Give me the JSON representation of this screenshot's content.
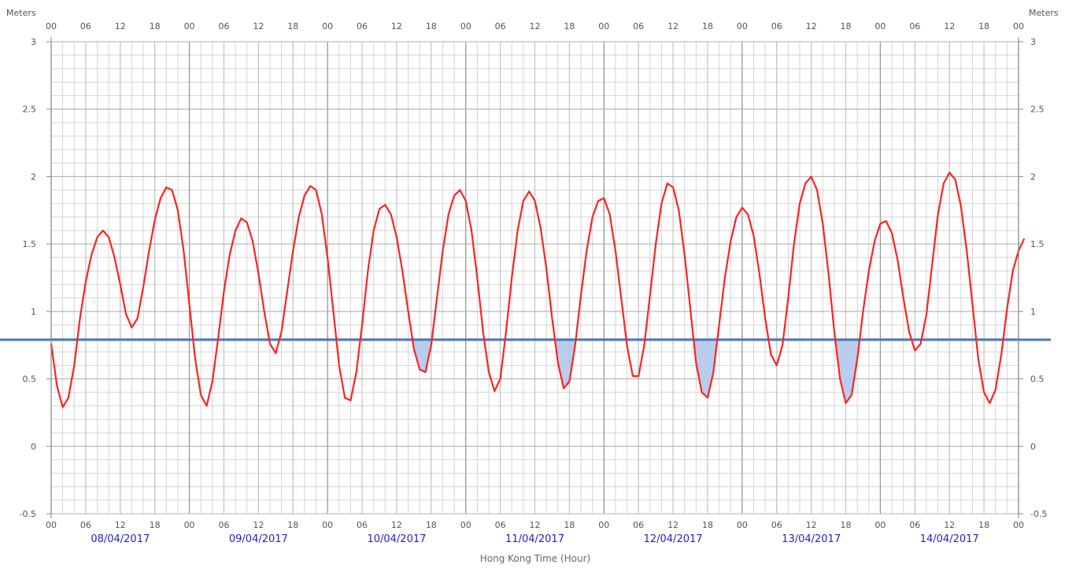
{
  "chart_data": {
    "type": "line",
    "title": "",
    "xlabel": "Hong Kong Time (Hour)",
    "ylabel_left": "Meters",
    "ylabel_right": "Meters",
    "ylim": [
      -0.5,
      3
    ],
    "yticks": [
      "-0.5",
      "0",
      "0.5",
      "1",
      "1.5",
      "2",
      "2.5",
      "3"
    ],
    "x_hour_range": [
      0,
      168
    ],
    "hour_tick_labels": [
      "00",
      "06",
      "12",
      "18",
      "00",
      "06",
      "12",
      "18",
      "00",
      "06",
      "12",
      "18",
      "00",
      "06",
      "12",
      "18",
      "00",
      "06",
      "12",
      "18",
      "00",
      "06",
      "12",
      "18",
      "00",
      "06",
      "12",
      "18",
      "00"
    ],
    "dates": [
      "08/04/2017",
      "09/04/2017",
      "10/04/2017",
      "11/04/2017",
      "12/04/2017",
      "13/04/2017",
      "14/04/2017"
    ],
    "grid": true,
    "colors": {
      "tide": "#ff2222",
      "threshold": "#4a7ab8",
      "fill": "#b4c8ea",
      "date": "#2222cc"
    },
    "threshold": 0.79,
    "series": [
      {
        "points": [
          [
            0,
            0.76
          ],
          [
            1,
            0.45
          ],
          [
            2,
            0.29
          ],
          [
            3,
            0.36
          ],
          [
            4,
            0.6
          ],
          [
            5,
            0.95
          ],
          [
            6,
            1.22
          ],
          [
            7,
            1.42
          ],
          [
            8,
            1.55
          ],
          [
            9,
            1.6
          ],
          [
            10,
            1.55
          ],
          [
            11,
            1.4
          ],
          [
            12,
            1.2
          ],
          [
            13,
            0.98
          ],
          [
            14,
            0.88
          ],
          [
            15,
            0.95
          ],
          [
            16,
            1.18
          ],
          [
            17,
            1.45
          ],
          [
            18,
            1.68
          ],
          [
            19,
            1.84
          ],
          [
            20,
            1.92
          ],
          [
            21,
            1.9
          ],
          [
            22,
            1.75
          ],
          [
            23,
            1.45
          ],
          [
            24,
            1.05
          ],
          [
            25,
            0.65
          ],
          [
            26,
            0.38
          ],
          [
            27,
            0.3
          ],
          [
            28,
            0.48
          ],
          [
            29,
            0.8
          ],
          [
            30,
            1.15
          ],
          [
            31,
            1.42
          ],
          [
            32,
            1.6
          ],
          [
            33,
            1.69
          ],
          [
            34,
            1.66
          ],
          [
            35,
            1.52
          ],
          [
            36,
            1.28
          ],
          [
            37,
            1.0
          ],
          [
            38,
            0.76
          ],
          [
            39,
            0.69
          ],
          [
            40,
            0.85
          ],
          [
            41,
            1.15
          ],
          [
            42,
            1.45
          ],
          [
            43,
            1.7
          ],
          [
            44,
            1.86
          ],
          [
            45,
            1.93
          ],
          [
            46,
            1.9
          ],
          [
            47,
            1.72
          ],
          [
            48,
            1.4
          ],
          [
            49,
            1.0
          ],
          [
            50,
            0.6
          ],
          [
            51,
            0.36
          ],
          [
            52,
            0.34
          ],
          [
            53,
            0.55
          ],
          [
            54,
            0.9
          ],
          [
            55,
            1.3
          ],
          [
            56,
            1.6
          ],
          [
            57,
            1.76
          ],
          [
            58,
            1.79
          ],
          [
            59,
            1.72
          ],
          [
            60,
            1.55
          ],
          [
            61,
            1.3
          ],
          [
            62,
            1.0
          ],
          [
            63,
            0.72
          ],
          [
            64,
            0.57
          ],
          [
            65,
            0.55
          ],
          [
            66,
            0.75
          ],
          [
            67,
            1.1
          ],
          [
            68,
            1.45
          ],
          [
            69,
            1.72
          ],
          [
            70,
            1.86
          ],
          [
            71,
            1.9
          ],
          [
            72,
            1.82
          ],
          [
            73,
            1.6
          ],
          [
            74,
            1.25
          ],
          [
            75,
            0.85
          ],
          [
            76,
            0.55
          ],
          [
            77,
            0.41
          ],
          [
            78,
            0.5
          ],
          [
            79,
            0.85
          ],
          [
            80,
            1.25
          ],
          [
            81,
            1.6
          ],
          [
            82,
            1.82
          ],
          [
            83,
            1.89
          ],
          [
            84,
            1.82
          ],
          [
            85,
            1.62
          ],
          [
            86,
            1.32
          ],
          [
            87,
            0.95
          ],
          [
            88,
            0.62
          ],
          [
            89,
            0.43
          ],
          [
            90,
            0.48
          ],
          [
            91,
            0.75
          ],
          [
            92,
            1.12
          ],
          [
            93,
            1.45
          ],
          [
            94,
            1.7
          ],
          [
            95,
            1.82
          ],
          [
            96,
            1.84
          ],
          [
            97,
            1.72
          ],
          [
            98,
            1.45
          ],
          [
            99,
            1.1
          ],
          [
            100,
            0.75
          ],
          [
            101,
            0.52
          ],
          [
            102,
            0.52
          ],
          [
            103,
            0.75
          ],
          [
            104,
            1.12
          ],
          [
            105,
            1.5
          ],
          [
            106,
            1.8
          ],
          [
            107,
            1.95
          ],
          [
            108,
            1.92
          ],
          [
            109,
            1.75
          ],
          [
            110,
            1.42
          ],
          [
            111,
            1.02
          ],
          [
            112,
            0.62
          ],
          [
            113,
            0.4
          ],
          [
            114,
            0.36
          ],
          [
            115,
            0.55
          ],
          [
            116,
            0.9
          ],
          [
            117,
            1.25
          ],
          [
            118,
            1.52
          ],
          [
            119,
            1.7
          ],
          [
            120,
            1.77
          ],
          [
            121,
            1.72
          ],
          [
            122,
            1.56
          ],
          [
            123,
            1.28
          ],
          [
            124,
            0.95
          ],
          [
            125,
            0.68
          ],
          [
            126,
            0.6
          ],
          [
            127,
            0.75
          ],
          [
            128,
            1.1
          ],
          [
            129,
            1.5
          ],
          [
            130,
            1.8
          ],
          [
            131,
            1.95
          ],
          [
            132,
            2.0
          ],
          [
            133,
            1.9
          ],
          [
            134,
            1.65
          ],
          [
            135,
            1.28
          ],
          [
            136,
            0.85
          ],
          [
            137,
            0.5
          ],
          [
            138,
            0.32
          ],
          [
            139,
            0.38
          ],
          [
            140,
            0.65
          ],
          [
            141,
            1.0
          ],
          [
            142,
            1.3
          ],
          [
            143,
            1.52
          ],
          [
            144,
            1.65
          ],
          [
            145,
            1.67
          ],
          [
            146,
            1.58
          ],
          [
            147,
            1.38
          ],
          [
            148,
            1.1
          ],
          [
            149,
            0.85
          ],
          [
            150,
            0.71
          ],
          [
            151,
            0.76
          ],
          [
            152,
            0.98
          ],
          [
            153,
            1.35
          ],
          [
            154,
            1.72
          ],
          [
            155,
            1.95
          ],
          [
            156,
            2.03
          ],
          [
            157,
            1.98
          ],
          [
            158,
            1.78
          ],
          [
            159,
            1.45
          ],
          [
            160,
            1.05
          ],
          [
            161,
            0.65
          ],
          [
            162,
            0.4
          ],
          [
            163,
            0.32
          ],
          [
            164,
            0.42
          ],
          [
            165,
            0.68
          ],
          [
            166,
            1.02
          ],
          [
            167,
            1.3
          ],
          [
            168,
            1.45
          ],
          [
            169,
            1.54
          ]
        ]
      }
    ]
  }
}
